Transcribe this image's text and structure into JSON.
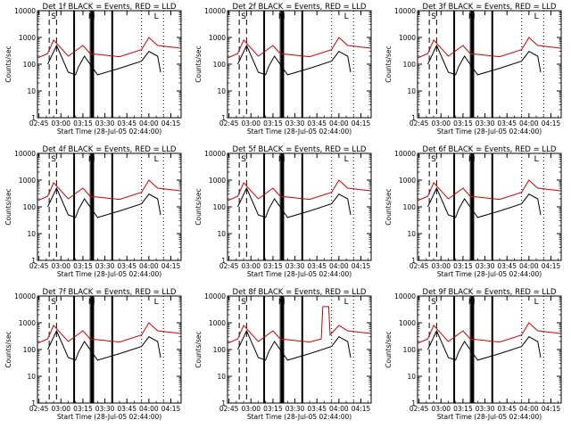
{
  "chart_data": [
    {
      "type": "line",
      "title": "Det 1f BLACK = Events, RED = LLD",
      "xlabel": "Start Time (28-Jul-05 02:44:00)",
      "ylabel": "Counts/sec",
      "x_ticks": [
        "02:45",
        "03:00",
        "03:15",
        "03:30",
        "03:45",
        "04:00",
        "04:15"
      ],
      "y_ticks": [
        "1",
        "10",
        "100",
        "1000",
        "10000"
      ],
      "yscale": "log",
      "ylim": [
        1,
        10000
      ],
      "xlim": [
        "02:44",
        "04:22"
      ],
      "markers": [
        "S",
        "M",
        "L"
      ],
      "series": [
        {
          "color": "#000000",
          "x": [
            "02:51",
            "02:57",
            "03:05",
            "03:10",
            "03:12",
            "03:16",
            "03:25",
            "03:40",
            "03:55",
            "04:00",
            "04:06",
            "04:08"
          ],
          "values": [
            100,
            500,
            50,
            40,
            80,
            200,
            40,
            70,
            130,
            300,
            200,
            50
          ]
        },
        {
          "color": "#cc0000",
          "x": [
            "02:44",
            "02:51",
            "02:55",
            "03:05",
            "03:15",
            "03:20",
            "03:40",
            "03:55",
            "04:00",
            "04:06",
            "04:21"
          ],
          "values": [
            170,
            250,
            800,
            200,
            500,
            250,
            190,
            350,
            1000,
            500,
            400
          ]
        }
      ]
    },
    {
      "type": "line",
      "title": "Det 2f BLACK = Events, RED = LLD",
      "xlabel": "Start Time (28-Jul-05 02:44:00)",
      "ylabel": "Counts/sec",
      "x_ticks": [
        "02:45",
        "03:00",
        "03:15",
        "03:30",
        "03:45",
        "04:00",
        "04:15"
      ],
      "y_ticks": [
        "1",
        "10",
        "100",
        "1000",
        "10000"
      ],
      "yscale": "log",
      "ylim": [
        1,
        10000
      ],
      "xlim": [
        "02:44",
        "04:22"
      ],
      "markers": [
        "S",
        "M",
        "L"
      ],
      "series": [
        {
          "color": "#000000",
          "x": [
            "02:51",
            "02:57",
            "03:05",
            "03:10",
            "03:12",
            "03:16",
            "03:25",
            "03:40",
            "03:55",
            "04:00",
            "04:06",
            "04:08"
          ],
          "values": [
            100,
            500,
            50,
            40,
            80,
            200,
            40,
            70,
            130,
            300,
            200,
            50
          ]
        },
        {
          "color": "#cc0000",
          "x": [
            "02:44",
            "02:51",
            "02:55",
            "03:05",
            "03:15",
            "03:20",
            "03:40",
            "03:55",
            "04:00",
            "04:06",
            "04:21"
          ],
          "values": [
            170,
            250,
            800,
            200,
            500,
            250,
            190,
            350,
            1000,
            500,
            400
          ]
        }
      ]
    },
    {
      "type": "line",
      "title": "Det 3f BLACK = Events, RED = LLD",
      "xlabel": "Start Time (28-Jul-05 02:44:00)",
      "ylabel": "Counts/sec",
      "x_ticks": [
        "02:45",
        "03:00",
        "03:15",
        "03:30",
        "03:45",
        "04:00",
        "04:15"
      ],
      "y_ticks": [
        "1",
        "10",
        "100",
        "1000",
        "10000"
      ],
      "yscale": "log",
      "ylim": [
        1,
        10000
      ],
      "xlim": [
        "02:44",
        "04:22"
      ],
      "markers": [
        "S",
        "M",
        "L"
      ],
      "series": [
        {
          "color": "#000000",
          "x": [
            "02:51",
            "02:57",
            "03:05",
            "03:10",
            "03:12",
            "03:16",
            "03:25",
            "03:40",
            "03:55",
            "04:00",
            "04:06",
            "04:08"
          ],
          "values": [
            100,
            500,
            50,
            40,
            80,
            200,
            40,
            70,
            130,
            300,
            200,
            50
          ]
        },
        {
          "color": "#cc0000",
          "x": [
            "02:44",
            "02:51",
            "02:55",
            "03:05",
            "03:15",
            "03:20",
            "03:40",
            "03:55",
            "04:00",
            "04:06",
            "04:21"
          ],
          "values": [
            170,
            250,
            800,
            200,
            500,
            250,
            190,
            350,
            1000,
            500,
            400
          ]
        }
      ]
    },
    {
      "type": "line",
      "title": "Det 4f BLACK = Events, RED = LLD",
      "xlabel": "Start Time (28-Jul-05 02:44:00)",
      "ylabel": "Counts/sec",
      "x_ticks": [
        "02:45",
        "03:00",
        "03:15",
        "03:30",
        "03:45",
        "04:00",
        "04:15"
      ],
      "y_ticks": [
        "1",
        "10",
        "100",
        "1000",
        "10000"
      ],
      "yscale": "log",
      "ylim": [
        1,
        10000
      ],
      "xlim": [
        "02:44",
        "04:22"
      ],
      "markers": [
        "S",
        "M",
        "L"
      ],
      "series": [
        {
          "color": "#000000",
          "x": [
            "02:51",
            "02:57",
            "03:05",
            "03:10",
            "03:12",
            "03:16",
            "03:25",
            "03:40",
            "03:55",
            "04:00",
            "04:06",
            "04:08"
          ],
          "values": [
            100,
            500,
            50,
            40,
            80,
            200,
            40,
            70,
            130,
            300,
            200,
            50
          ]
        },
        {
          "color": "#cc0000",
          "x": [
            "02:44",
            "02:51",
            "02:55",
            "03:05",
            "03:15",
            "03:20",
            "03:40",
            "03:55",
            "04:00",
            "04:06",
            "04:21"
          ],
          "values": [
            170,
            250,
            800,
            200,
            500,
            250,
            190,
            350,
            1000,
            500,
            400
          ]
        }
      ]
    },
    {
      "type": "line",
      "title": "Det 5f BLACK = Events, RED = LLD",
      "xlabel": "Start Time (28-Jul-05 02:44:00)",
      "ylabel": "Counts/sec",
      "x_ticks": [
        "02:45",
        "03:00",
        "03:15",
        "03:30",
        "03:45",
        "04:00",
        "04:15"
      ],
      "y_ticks": [
        "1",
        "10",
        "100",
        "1000",
        "10000"
      ],
      "yscale": "log",
      "ylim": [
        1,
        10000
      ],
      "xlim": [
        "02:44",
        "04:22"
      ],
      "markers": [
        "S",
        "M",
        "L"
      ],
      "series": [
        {
          "color": "#000000",
          "x": [
            "02:51",
            "02:57",
            "03:05",
            "03:10",
            "03:12",
            "03:16",
            "03:25",
            "03:40",
            "03:55",
            "04:00",
            "04:06",
            "04:08"
          ],
          "values": [
            100,
            500,
            50,
            40,
            80,
            200,
            40,
            70,
            130,
            300,
            200,
            50
          ]
        },
        {
          "color": "#cc0000",
          "x": [
            "02:44",
            "02:51",
            "02:55",
            "03:05",
            "03:15",
            "03:20",
            "03:40",
            "03:55",
            "04:00",
            "04:06",
            "04:21"
          ],
          "values": [
            170,
            250,
            800,
            200,
            500,
            250,
            190,
            350,
            1000,
            500,
            400
          ]
        }
      ]
    },
    {
      "type": "line",
      "title": "Det 6f BLACK = Events, RED = LLD",
      "xlabel": "Start Time (28-Jul-05 02:44:00)",
      "ylabel": "Counts/sec",
      "x_ticks": [
        "02:45",
        "03:00",
        "03:15",
        "03:30",
        "03:45",
        "04:00",
        "04:15"
      ],
      "y_ticks": [
        "1",
        "10",
        "100",
        "1000",
        "10000"
      ],
      "yscale": "log",
      "ylim": [
        1,
        10000
      ],
      "xlim": [
        "02:44",
        "04:22"
      ],
      "markers": [
        "S",
        "M",
        "L"
      ],
      "series": [
        {
          "color": "#000000",
          "x": [
            "02:51",
            "02:57",
            "03:05",
            "03:10",
            "03:12",
            "03:16",
            "03:25",
            "03:40",
            "03:55",
            "04:00",
            "04:06",
            "04:08"
          ],
          "values": [
            100,
            500,
            50,
            40,
            80,
            200,
            40,
            70,
            130,
            300,
            200,
            50
          ]
        },
        {
          "color": "#cc0000",
          "x": [
            "02:44",
            "02:51",
            "02:55",
            "03:05",
            "03:15",
            "03:20",
            "03:40",
            "03:55",
            "04:00",
            "04:06",
            "04:21"
          ],
          "values": [
            170,
            250,
            800,
            200,
            500,
            250,
            190,
            350,
            1000,
            500,
            400
          ]
        }
      ]
    },
    {
      "type": "line",
      "title": "Det 7f BLACK = Events, RED = LLD",
      "xlabel": "Start Time (28-Jul-05 02:44:00)",
      "ylabel": "Counts/sec",
      "x_ticks": [
        "02:45",
        "03:00",
        "03:15",
        "03:30",
        "03:45",
        "04:00",
        "04:15"
      ],
      "y_ticks": [
        "1",
        "10",
        "100",
        "1000",
        "10000"
      ],
      "yscale": "log",
      "ylim": [
        1,
        10000
      ],
      "xlim": [
        "02:44",
        "04:22"
      ],
      "markers": [
        "S",
        "M",
        "L"
      ],
      "series": [
        {
          "color": "#000000",
          "x": [
            "02:51",
            "02:57",
            "03:05",
            "03:10",
            "03:12",
            "03:16",
            "03:25",
            "03:40",
            "03:55",
            "04:00",
            "04:06",
            "04:08"
          ],
          "values": [
            100,
            500,
            50,
            40,
            80,
            200,
            40,
            70,
            130,
            300,
            200,
            50
          ]
        },
        {
          "color": "#cc0000",
          "x": [
            "02:44",
            "02:51",
            "02:55",
            "03:05",
            "03:15",
            "03:20",
            "03:40",
            "03:55",
            "04:00",
            "04:06",
            "04:21"
          ],
          "values": [
            170,
            250,
            800,
            200,
            500,
            250,
            190,
            350,
            1000,
            500,
            400
          ]
        }
      ]
    },
    {
      "type": "line",
      "title": "Det 8f BLACK = Events, RED = LLD",
      "xlabel": "Start Time (28-Jul-05 02:44:00)",
      "ylabel": "Counts/sec",
      "x_ticks": [
        "02:45",
        "03:00",
        "03:15",
        "03:30",
        "03:45",
        "04:00",
        "04:15"
      ],
      "y_ticks": [
        "1",
        "10",
        "100",
        "1000",
        "10000"
      ],
      "yscale": "log",
      "ylim": [
        1,
        10000
      ],
      "xlim": [
        "02:44",
        "04:22"
      ],
      "markers": [
        "S",
        "M",
        "L"
      ],
      "series": [
        {
          "color": "#000000",
          "x": [
            "02:51",
            "02:57",
            "03:05",
            "03:10",
            "03:12",
            "03:16",
            "03:25",
            "03:40",
            "03:55",
            "04:00",
            "04:06",
            "04:08"
          ],
          "values": [
            100,
            500,
            50,
            40,
            80,
            200,
            40,
            70,
            130,
            300,
            200,
            50
          ]
        },
        {
          "color": "#cc0000",
          "x": [
            "02:44",
            "02:51",
            "02:55",
            "03:05",
            "03:15",
            "03:20",
            "03:40",
            "03:48",
            "03:49",
            "03:53",
            "03:54",
            "04:00",
            "04:06",
            "04:21"
          ],
          "values": [
            170,
            250,
            800,
            200,
            500,
            250,
            190,
            250,
            4000,
            4000,
            350,
            800,
            500,
            400
          ]
        }
      ]
    },
    {
      "type": "line",
      "title": "Det 9f BLACK = Events, RED = LLD",
      "xlabel": "Start Time (28-Jul-05 02:44:00)",
      "ylabel": "Counts/sec",
      "x_ticks": [
        "02:45",
        "03:00",
        "03:15",
        "03:30",
        "03:45",
        "04:00",
        "04:15"
      ],
      "y_ticks": [
        "1",
        "10",
        "100",
        "1000",
        "10000"
      ],
      "yscale": "log",
      "ylim": [
        1,
        10000
      ],
      "xlim": [
        "02:44",
        "04:22"
      ],
      "markers": [
        "S",
        "M",
        "L"
      ],
      "series": [
        {
          "color": "#000000",
          "x": [
            "02:51",
            "02:57",
            "03:05",
            "03:10",
            "03:12",
            "03:16",
            "03:25",
            "03:40",
            "03:55",
            "04:00",
            "04:06",
            "04:08"
          ],
          "values": [
            100,
            500,
            50,
            40,
            80,
            200,
            40,
            70,
            130,
            300,
            200,
            50
          ]
        },
        {
          "color": "#cc0000",
          "x": [
            "02:44",
            "02:51",
            "02:55",
            "03:05",
            "03:15",
            "03:20",
            "03:40",
            "03:55",
            "04:00",
            "04:06",
            "04:21"
          ],
          "values": [
            170,
            250,
            800,
            200,
            500,
            250,
            190,
            350,
            1000,
            500,
            400
          ]
        }
      ]
    }
  ]
}
